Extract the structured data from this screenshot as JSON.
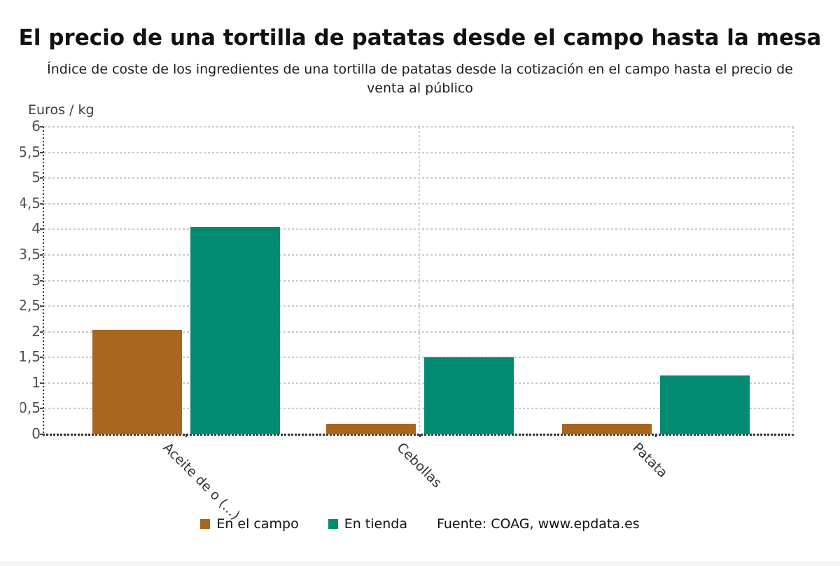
{
  "header": {
    "title": "El precio de una tortilla de patatas desde el campo hasta la mesa",
    "subtitle": "Índice de coste de los ingredientes de una tortilla de patatas desde la cotización en el campo hasta el precio de venta al público"
  },
  "chart_data": {
    "type": "bar",
    "title": "El precio de una tortilla de patatas desde el campo hasta la mesa",
    "categories": [
      "Aceite de o (...)",
      "Cebollas",
      "Patata"
    ],
    "series": [
      {
        "name": "En el campo",
        "color": "#a9661f",
        "values": [
          2.04,
          0.2,
          0.2
        ]
      },
      {
        "name": "En tienda",
        "color": "#008b72",
        "values": [
          4.05,
          1.5,
          1.15
        ]
      }
    ],
    "xlabel": "",
    "ylabel": "Euros / kg",
    "ylim": [
      0,
      6
    ],
    "ytick_step": 0.5,
    "ytick_labels": [
      "0",
      "0,5",
      "1",
      "1,5",
      "2",
      "2,5",
      "3",
      "3,5",
      "4",
      "4,5",
      "5",
      "5,5",
      "6"
    ],
    "grid": true,
    "legend_position": "bottom"
  },
  "legend": {
    "items": [
      {
        "label": "En el campo",
        "color": "#a9661f"
      },
      {
        "label": "En tienda",
        "color": "#008b72"
      }
    ],
    "source": "Fuente: COAG, www.epdata.es"
  }
}
